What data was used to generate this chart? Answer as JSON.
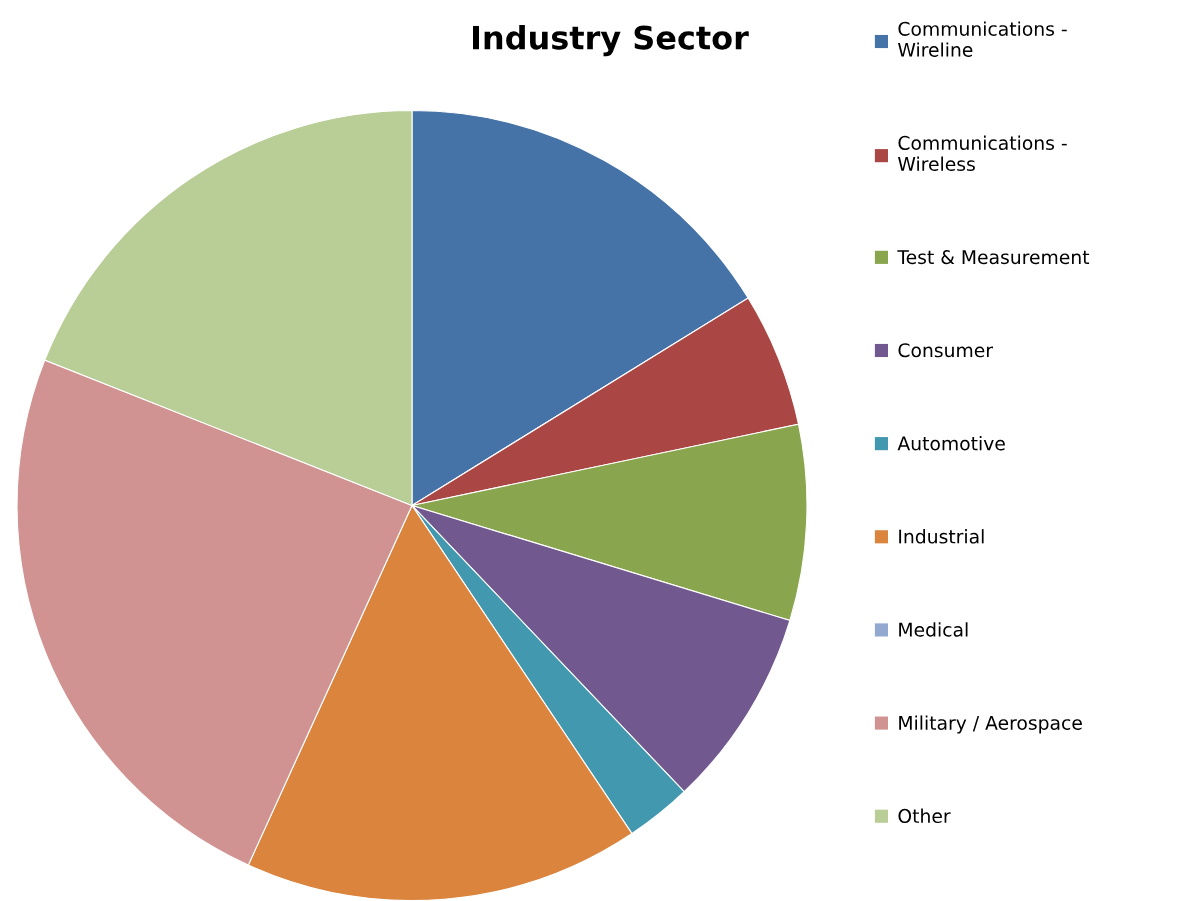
{
  "chart_data": {
    "type": "pie",
    "title": "Industry Sector",
    "categories": [
      "Communications - Wireline",
      "Communications - Wireless",
      "Test & Measurement",
      "Consumer",
      "Automotive",
      "Industrial",
      "Medical",
      "Military / Aerospace",
      "Other"
    ],
    "values": [
      16.2,
      5.5,
      8.0,
      8.2,
      2.7,
      16.2,
      0,
      24.2,
      19.0
    ],
    "colors": [
      "#4572a7",
      "#aa4643",
      "#89a54e",
      "#71588f",
      "#4198af",
      "#db843d",
      "#93a9cf",
      "#d19392",
      "#b9cd96"
    ],
    "legend": "right"
  }
}
